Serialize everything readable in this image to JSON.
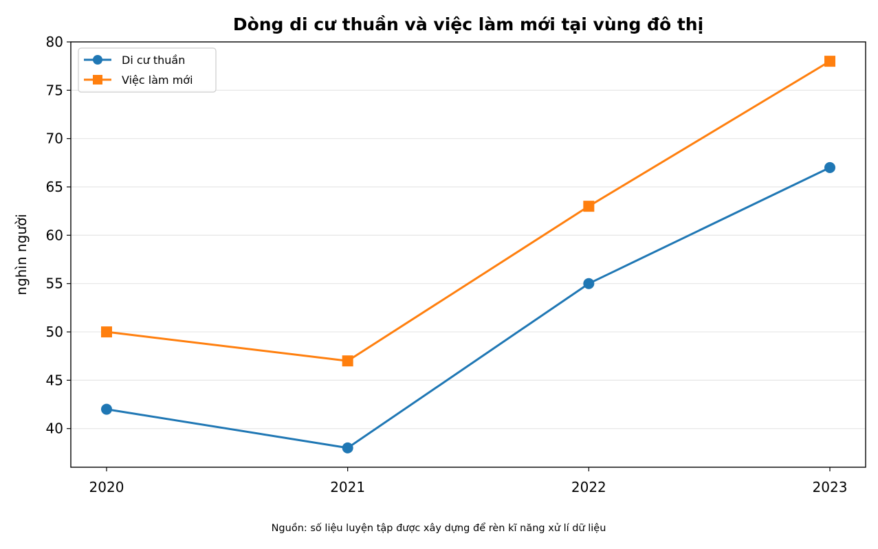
{
  "chart_data": {
    "type": "line",
    "title": "Dòng di cư thuần và việc làm mới tại vùng đô thị",
    "xlabel": "",
    "ylabel": "nghìn người",
    "categories": [
      "2020",
      "2021",
      "2022",
      "2023"
    ],
    "series": [
      {
        "name": "Di cư thuần",
        "values": [
          42,
          38,
          55,
          67
        ],
        "color": "#1f77b4",
        "marker": "circle"
      },
      {
        "name": "Việc làm mới",
        "values": [
          50,
          47,
          63,
          78
        ],
        "color": "#ff7f0e",
        "marker": "square"
      }
    ],
    "ylim": [
      36,
      80
    ],
    "yticks": [
      40,
      45,
      50,
      55,
      60,
      65,
      70,
      75,
      80
    ],
    "grid": "horizontal",
    "legend_position": "top-left",
    "source_note": "Nguồn: số liệu luyện tập được xây dựng để rèn kĩ năng xử lí dữ liệu"
  }
}
